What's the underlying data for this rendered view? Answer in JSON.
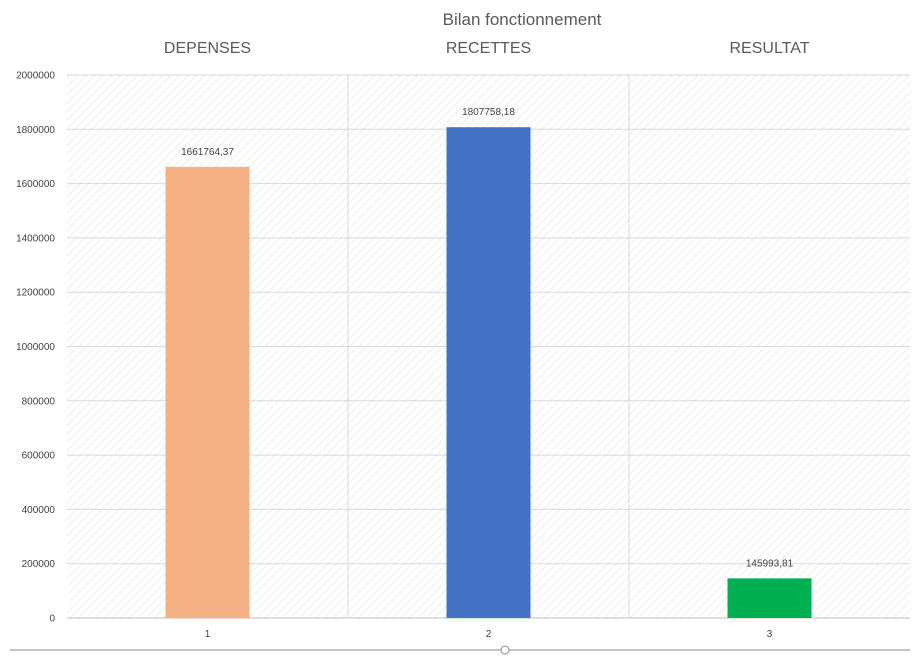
{
  "chart_data": {
    "type": "bar",
    "title": "Bilan fonctionnement",
    "categories": [
      "1",
      "2",
      "3"
    ],
    "column_headers": [
      "DEPENSES",
      "RECETTES",
      "RESULTAT"
    ],
    "values": [
      1661764.37,
      1807758.18,
      145993.81
    ],
    "data_labels": [
      "1661764,37",
      "1807758,18",
      "145993,81"
    ],
    "colors": [
      "#F4B183",
      "#4472C4",
      "#00B050"
    ],
    "ylim": [
      0,
      2000000
    ],
    "yticks": [
      0,
      200000,
      400000,
      600000,
      800000,
      1000000,
      1200000,
      1400000,
      1600000,
      1800000,
      2000000
    ],
    "grid": true,
    "xlabel": "",
    "ylabel": ""
  }
}
